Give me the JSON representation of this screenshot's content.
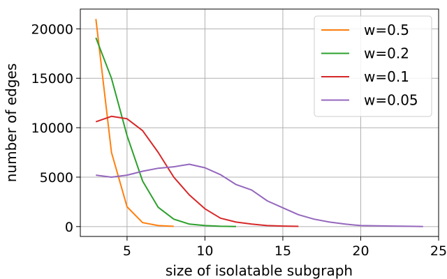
{
  "chart_data": {
    "type": "line",
    "xlabel": "size of isolatable subgraph",
    "ylabel": "number of edges",
    "xlim": [
      2.0,
      25.0
    ],
    "ylim": [
      -1000,
      22000
    ],
    "xticks": [
      5,
      10,
      15,
      20,
      25
    ],
    "yticks": [
      0,
      5000,
      10000,
      15000,
      20000
    ],
    "grid": true,
    "legend_position": "top-right",
    "series": [
      {
        "name": "w=0.5",
        "color": "#ff7f0e",
        "x": [
          3,
          4,
          5,
          6,
          7,
          8
        ],
        "y": [
          21000,
          7500,
          2000,
          400,
          100,
          20
        ]
      },
      {
        "name": "w=0.2",
        "color": "#2ca02c",
        "x": [
          3,
          4,
          5,
          6,
          7,
          8,
          9,
          10,
          11,
          12
        ],
        "y": [
          19100,
          15000,
          9200,
          4600,
          1950,
          750,
          250,
          100,
          30,
          10
        ]
      },
      {
        "name": "w=0.1",
        "color": "#d62728",
        "x": [
          3,
          4,
          5,
          6,
          7,
          8,
          9,
          10,
          11,
          12,
          13,
          14,
          15,
          16
        ],
        "y": [
          10600,
          11150,
          10900,
          9700,
          7500,
          5000,
          3200,
          1800,
          850,
          450,
          250,
          100,
          50,
          20
        ]
      },
      {
        "name": "w=0.05",
        "color": "#9467bd",
        "x": [
          3,
          4,
          5,
          6,
          7,
          8,
          9,
          10,
          11,
          12,
          13,
          14,
          15,
          16,
          17,
          18,
          19,
          20,
          21,
          22,
          23,
          24
        ],
        "y": [
          5200,
          5000,
          5200,
          5600,
          5900,
          6050,
          6300,
          5950,
          5250,
          4250,
          3700,
          2600,
          1900,
          1200,
          750,
          450,
          250,
          100,
          80,
          50,
          30,
          10
        ]
      }
    ]
  }
}
